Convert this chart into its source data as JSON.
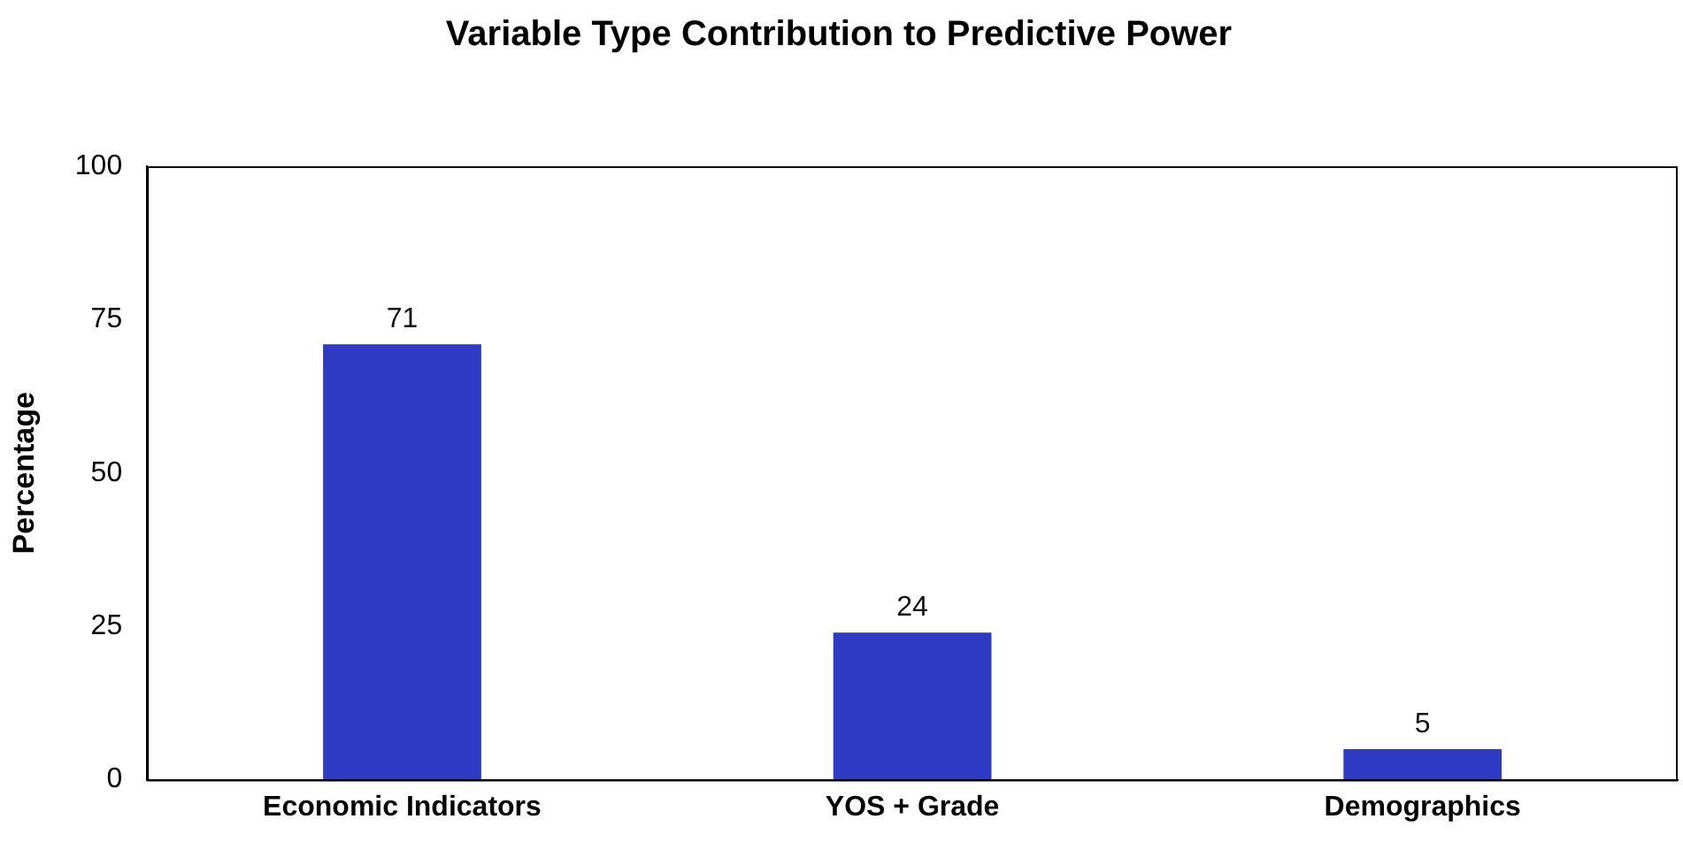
{
  "chart_data": {
    "type": "bar",
    "title": "Variable Type Contribution to Predictive Power",
    "ylabel": "Percentage",
    "categories": [
      "Economic Indicators",
      "YOS + Grade",
      "Demographics"
    ],
    "values": [
      71,
      24,
      5
    ],
    "color": "#2f3bc5",
    "ylim": [
      0,
      100
    ],
    "yticks": [
      0,
      25,
      50,
      75,
      100
    ],
    "grid": false,
    "legend": false,
    "data_labels": true
  }
}
